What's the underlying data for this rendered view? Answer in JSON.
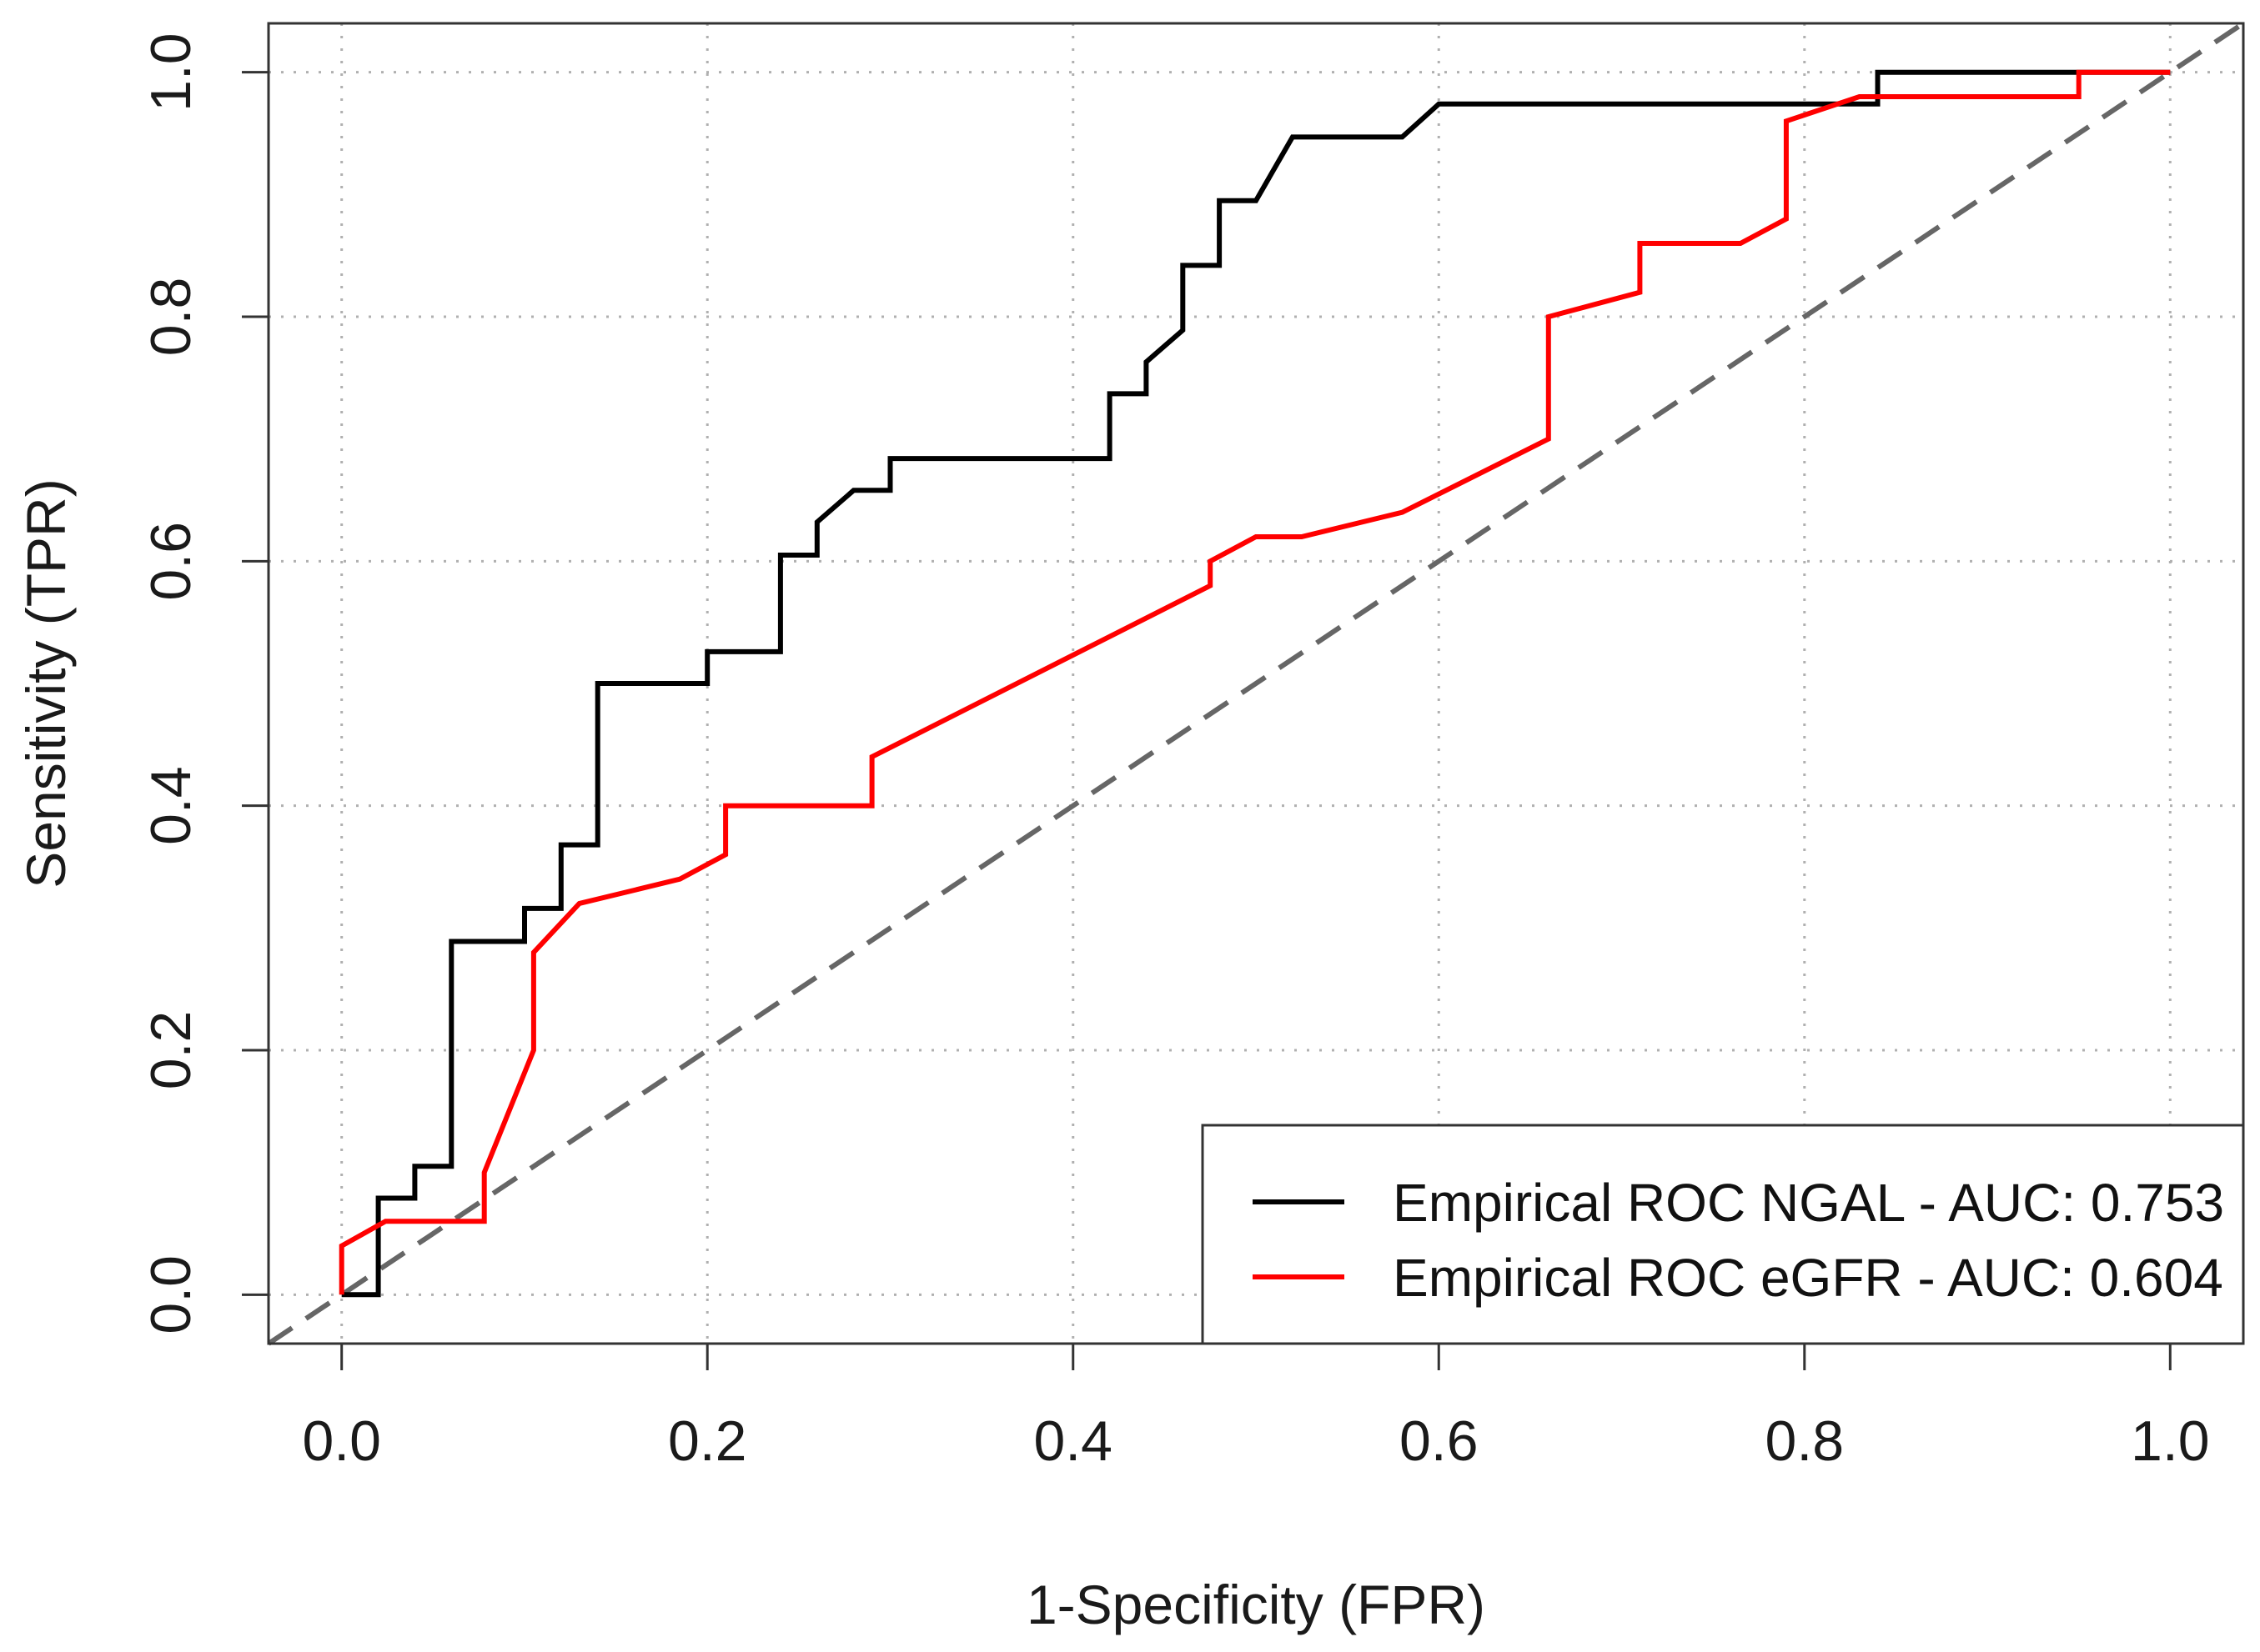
{
  "chart_data": {
    "type": "line",
    "title": "",
    "xlabel": "1-Specificity (FPR)",
    "ylabel": "Sensitivity (TPR)",
    "xlim": [
      -0.04,
      1.04
    ],
    "ylim": [
      -0.04,
      1.04
    ],
    "x_ticks": [
      0.0,
      0.2,
      0.4,
      0.6,
      0.8,
      1.0
    ],
    "y_ticks": [
      0.0,
      0.2,
      0.4,
      0.6,
      0.8,
      1.0
    ],
    "x_tick_labels": [
      "0.0",
      "0.2",
      "0.4",
      "0.6",
      "0.8",
      "1.0"
    ],
    "y_tick_labels": [
      "0.0",
      "0.2",
      "0.4",
      "0.6",
      "0.8",
      "1.0"
    ],
    "grid": true,
    "legend_position": "bottom-right",
    "reference_line": {
      "name": "chance",
      "x": [
        0,
        1
      ],
      "y": [
        0,
        1
      ],
      "style": "dashed",
      "color": "#666666"
    },
    "series": [
      {
        "name": "Empirical ROC NGAL - AUC: 0.753",
        "color": "#000000",
        "x": [
          0,
          0.02,
          0.02,
          0.04,
          0.04,
          0.06,
          0.06,
          0.1,
          0.1,
          0.12,
          0.12,
          0.14,
          0.14,
          0.2,
          0.2,
          0.24,
          0.24,
          0.26,
          0.26,
          0.28,
          0.3,
          0.3,
          0.42,
          0.42,
          0.44,
          0.44,
          0.46,
          0.46,
          0.48,
          0.48,
          0.5,
          0.52,
          0.58,
          0.6,
          0.84,
          0.84,
          0.86,
          1.0
        ],
        "y": [
          0,
          0,
          0.079,
          0.079,
          0.105,
          0.105,
          0.289,
          0.289,
          0.316,
          0.316,
          0.368,
          0.368,
          0.5,
          0.5,
          0.526,
          0.526,
          0.605,
          0.605,
          0.632,
          0.658,
          0.658,
          0.684,
          0.684,
          0.737,
          0.737,
          0.763,
          0.789,
          0.842,
          0.842,
          0.895,
          0.895,
          0.947,
          0.947,
          0.974,
          0.974,
          1.0,
          1.0,
          1.0
        ]
      },
      {
        "name": "Empirical ROC eGFR - AUC: 0.604",
        "color": "#ff0000",
        "x": [
          0,
          0,
          0.024,
          0.078,
          0.078,
          0.105,
          0.105,
          0.13,
          0.185,
          0.21,
          0.21,
          0.29,
          0.29,
          0.475,
          0.475,
          0.5,
          0.525,
          0.58,
          0.66,
          0.66,
          0.71,
          0.71,
          0.765,
          0.79,
          0.79,
          0.83,
          0.95,
          0.95,
          1.0
        ],
        "y": [
          0,
          0.04,
          0.06,
          0.06,
          0.1,
          0.2,
          0.28,
          0.32,
          0.34,
          0.36,
          0.4,
          0.4,
          0.44,
          0.58,
          0.6,
          0.62,
          0.62,
          0.64,
          0.7,
          0.8,
          0.82,
          0.86,
          0.86,
          0.88,
          0.96,
          0.98,
          0.98,
          1.0,
          1.0
        ]
      }
    ]
  }
}
